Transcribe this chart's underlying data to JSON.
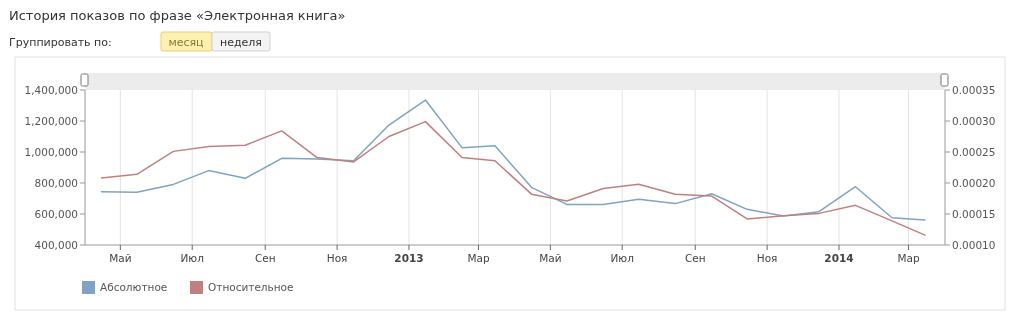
{
  "chart_data": {
    "type": "line",
    "title": "История показов по фразе «Электронная книга»",
    "annotations": [
      "Группировать по:",
      "месяц",
      "неделя"
    ],
    "x": [
      "2012-04-15",
      "2012-05-15",
      "2012-06-15",
      "2012-07-15",
      "2012-08-15",
      "2012-09-15",
      "2012-10-15",
      "2012-11-15",
      "2012-12-15",
      "2013-01-15",
      "2013-02-15",
      "2013-03-15",
      "2013-04-15",
      "2013-05-15",
      "2013-06-15",
      "2013-07-15",
      "2013-08-15",
      "2013-09-15",
      "2013-10-15",
      "2013-11-15",
      "2013-12-15",
      "2014-01-15",
      "2014-02-15",
      "2014-03-15"
    ],
    "series": [
      {
        "name": "Абсолютное",
        "color": "#7fa3c4",
        "values": [
          744000,
          740000,
          791000,
          880000,
          830000,
          959000,
          955000,
          944000,
          1174000,
          1335000,
          1028000,
          1041000,
          772000,
          662000,
          662000,
          695000,
          667000,
          731000,
          630000,
          587000,
          615000,
          776000,
          576000,
          561000
        ]
      },
      {
        "name": "Относительное",
        "color": "#c08080",
        "axis": "y2",
        "values": [
          0.000208,
          0.000214,
          0.000251,
          0.000259,
          0.000261,
          0.000284,
          0.000241,
          0.000234,
          0.000275,
          0.000299,
          0.000241,
          0.000236,
          0.000182,
          0.000171,
          0.000191,
          0.000198,
          0.000182,
          0.000179,
          0.000142,
          0.000147,
          0.000151,
          0.000164,
          0.000139,
          0.000116
        ]
      }
    ],
    "xlim": [
      "2012-04-01",
      "2014-04-01"
    ],
    "xticks": [
      {
        "value": "2012-05-01",
        "label": "Май"
      },
      {
        "value": "2012-07-01",
        "label": "Июл"
      },
      {
        "value": "2012-09-01",
        "label": "Сен"
      },
      {
        "value": "2012-11-01",
        "label": "Ноя"
      },
      {
        "value": "2013-01-01",
        "label": "2013"
      },
      {
        "value": "2013-03-01",
        "label": "Мар"
      },
      {
        "value": "2013-05-01",
        "label": "Май"
      },
      {
        "value": "2013-07-01",
        "label": "Июл"
      },
      {
        "value": "2013-09-01",
        "label": "Сен"
      },
      {
        "value": "2013-11-01",
        "label": "Ноя"
      },
      {
        "value": "2014-01-01",
        "label": "2014"
      },
      {
        "value": "2014-03-01",
        "label": "Мар"
      }
    ],
    "ylim": [
      400000,
      1400000
    ],
    "yticks": [
      {
        "value": 400000,
        "label": "400,000"
      },
      {
        "value": 600000,
        "label": "600,000"
      },
      {
        "value": 800000,
        "label": "800,000"
      },
      {
        "value": 1000000,
        "label": "1,000,000"
      },
      {
        "value": 1200000,
        "label": "1,200,000"
      },
      {
        "value": 1400000,
        "label": "1,400,000"
      }
    ],
    "y2lim": [
      0.0001,
      0.00035
    ],
    "y2ticks": [
      {
        "value": 0.0001,
        "label": "0.00010"
      },
      {
        "value": 0.00015,
        "label": "0.00015"
      },
      {
        "value": 0.0002,
        "label": "0.00020"
      },
      {
        "value": 0.00025,
        "label": "0.00025"
      },
      {
        "value": 0.0003,
        "label": "0.00030"
      },
      {
        "value": 0.00035,
        "label": "0.00035"
      }
    ],
    "grid": "x",
    "legend": "bottom left",
    "marker": "none",
    "line_style": "solid"
  }
}
